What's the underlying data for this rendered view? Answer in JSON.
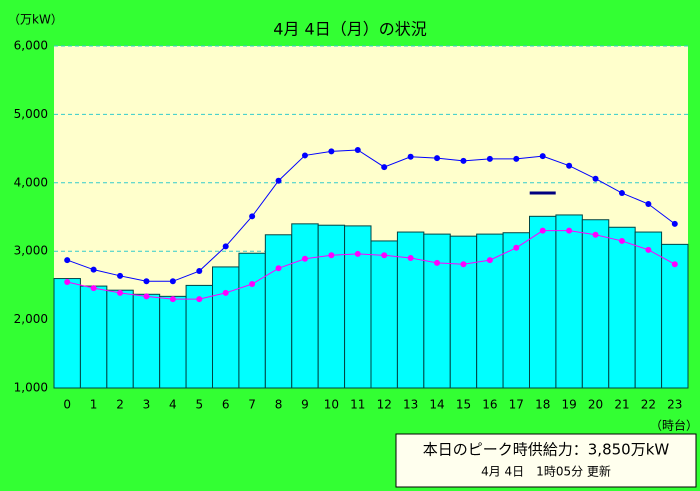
{
  "chart_data": {
    "type": "bar",
    "title": "4月 4日（月）の状況",
    "y_label": "（万kW）",
    "x_label": "（時台）",
    "categories": [
      "0",
      "1",
      "2",
      "3",
      "4",
      "5",
      "6",
      "7",
      "8",
      "9",
      "10",
      "11",
      "12",
      "13",
      "14",
      "15",
      "16",
      "17",
      "18",
      "19",
      "20",
      "21",
      "22",
      "23"
    ],
    "values": [
      2600,
      2490,
      2430,
      2370,
      2340,
      2500,
      2770,
      2970,
      3240,
      3400,
      3380,
      3370,
      3150,
      3280,
      3250,
      3220,
      3250,
      3270,
      3510,
      3530,
      3460,
      3350,
      3280,
      3100
    ],
    "color": "#00ffff",
    "series": [
      {
        "color": "#0000ff",
        "values": [
          2870,
          2730,
          2640,
          2560,
          2560,
          2710,
          3070,
          3510,
          4030,
          4400,
          4460,
          4480,
          4230,
          4380,
          4360,
          4320,
          4350,
          4350,
          4390,
          4250,
          4060,
          3850,
          3690,
          3400
        ]
      },
      {
        "color": "#ff00ff",
        "values": [
          2550,
          2460,
          2390,
          2340,
          2300,
          2300,
          2390,
          2520,
          2750,
          2890,
          2940,
          2960,
          2940,
          2900,
          2830,
          2810,
          2870,
          3050,
          3300,
          3300,
          3240,
          3150,
          3020,
          2810
        ]
      },
      {
        "color": "#000080",
        "style": "dash",
        "values": [
          null,
          null,
          null,
          null,
          null,
          null,
          null,
          null,
          null,
          null,
          null,
          null,
          null,
          null,
          null,
          null,
          null,
          null,
          3850,
          null,
          null,
          null,
          null,
          null
        ]
      }
    ],
    "ylim": [
      1000,
      6000
    ],
    "yticks": [
      {
        "value": 1000,
        "label": "1,000"
      },
      {
        "value": 2000,
        "label": "2,000"
      },
      {
        "value": 3000,
        "label": "3,000"
      },
      {
        "value": 4000,
        "label": "4,000"
      },
      {
        "value": 5000,
        "label": "5,000"
      },
      {
        "value": 6000,
        "label": "6,000"
      }
    ],
    "grid": true,
    "footer": {
      "peak": "本日のピーク時供給力：3,850万kW",
      "updated": "4月 4日　1時05分 更新"
    }
  }
}
